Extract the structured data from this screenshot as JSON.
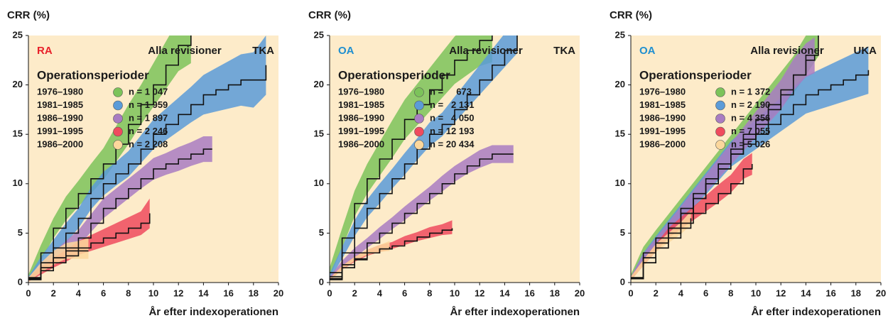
{
  "chart_data": [
    {
      "type": "line",
      "y_label": "CRR (%)",
      "x_label": "År efter indexoperationen",
      "group": "RA",
      "group_color": "#e8202a",
      "heading": "Alla revisioner",
      "implant": "TKA",
      "legend_title": "Operationsperioder",
      "xlim": [
        0,
        20
      ],
      "xticks": [
        0,
        2,
        4,
        6,
        8,
        10,
        12,
        14,
        16,
        18,
        20
      ],
      "ylim": [
        0,
        25
      ],
      "yticks": [
        0,
        5,
        10,
        15,
        20,
        25
      ],
      "series": [
        {
          "name": "1976–1980",
          "n_label": "n = 1 047",
          "color": "#7cc35a",
          "x": [
            0,
            1,
            2,
            3,
            4,
            5,
            6,
            7,
            8,
            9,
            10,
            11,
            12,
            13
          ],
          "values": [
            0.5,
            3,
            5.5,
            7.5,
            9,
            10.5,
            12,
            14,
            16,
            18,
            20,
            22,
            24,
            25
          ],
          "lower": [
            0.2,
            2.2,
            4.5,
            6.3,
            7.7,
            9,
            10.4,
            12.2,
            14,
            16,
            17.8,
            19.6,
            21.4,
            22.2
          ],
          "upper": [
            0.8,
            3.8,
            6.5,
            8.7,
            10.3,
            12,
            13.6,
            15.8,
            18,
            20,
            22.2,
            24.4,
            26.6,
            27.8
          ]
        },
        {
          "name": "1981–1985",
          "n_label": "n = 1 959",
          "color": "#5b9bd8",
          "x": [
            0,
            1,
            2,
            3,
            4,
            5,
            6,
            7,
            8,
            9,
            10,
            11,
            12,
            13,
            14,
            15,
            16,
            17,
            18,
            19
          ],
          "values": [
            0.4,
            2,
            3.5,
            5,
            6.5,
            8.5,
            10,
            11,
            12,
            13.5,
            15,
            16,
            17,
            18,
            19,
            19.5,
            20,
            20.5,
            20.5,
            22
          ],
          "lower": [
            0.2,
            1.4,
            2.7,
            4,
            5.5,
            7.4,
            8.8,
            9.8,
            10.7,
            12.1,
            13.5,
            14.4,
            15.3,
            16.2,
            17,
            17.3,
            17.6,
            17.9,
            17.7,
            19
          ],
          "upper": [
            0.6,
            2.6,
            4.3,
            6,
            7.5,
            9.6,
            11.2,
            12.2,
            13.3,
            14.9,
            16.5,
            17.6,
            18.7,
            19.8,
            21,
            21.7,
            22.4,
            23.1,
            23.3,
            25
          ]
        },
        {
          "name": "1986–1990",
          "n_label": "n = 1 897",
          "color": "#a97cc2",
          "x": [
            0,
            1,
            2,
            3,
            4,
            5,
            6,
            7,
            8,
            9,
            10,
            11,
            12,
            13,
            14,
            14.7
          ],
          "values": [
            0.3,
            1.5,
            2.5,
            3.5,
            4.5,
            6,
            7.5,
            8.5,
            9.5,
            10.5,
            11.5,
            12,
            12.5,
            13,
            13.5,
            13.5
          ],
          "lower": [
            0.1,
            1,
            1.9,
            2.8,
            3.7,
            5.1,
            6.5,
            7.5,
            8.5,
            9.5,
            10.4,
            10.9,
            11.3,
            11.8,
            12.2,
            12.2
          ],
          "upper": [
            0.5,
            2,
            3.1,
            4.2,
            5.3,
            6.9,
            8.5,
            9.5,
            10.5,
            11.5,
            12.6,
            13.1,
            13.7,
            14.2,
            14.8,
            14.8
          ]
        },
        {
          "name": "1991–1995",
          "n_label": "n = 2 246",
          "color": "#ef4b5e",
          "x": [
            0,
            1,
            2,
            3,
            4,
            5,
            6,
            7,
            8,
            9,
            9.7
          ],
          "values": [
            0.3,
            1.2,
            2,
            2.7,
            3.5,
            4,
            4.5,
            5,
            5.5,
            6,
            7
          ],
          "lower": [
            0.1,
            0.8,
            1.5,
            2.1,
            2.8,
            3.2,
            3.6,
            4,
            4.4,
            4.8,
            5.5
          ],
          "upper": [
            0.5,
            1.6,
            2.5,
            3.3,
            4.2,
            4.8,
            5.4,
            6,
            6.6,
            7.2,
            8.5
          ]
        },
        {
          "name": "1986–2000",
          "n_label": "n = 2 208",
          "color": "#fcd79c",
          "x": [
            0,
            1,
            2,
            3,
            4,
            4.8
          ],
          "values": [
            0.3,
            1.5,
            2.5,
            3.2,
            3.2,
            3.2
          ],
          "lower": [
            0.1,
            1,
            1.8,
            2.4,
            2.4,
            2.4
          ],
          "upper": [
            0.5,
            2,
            3.2,
            4,
            4.2,
            4.5
          ]
        }
      ]
    },
    {
      "type": "line",
      "y_label": "CRR (%)",
      "x_label": "År efter indexoperationen",
      "group": "OA",
      "group_color": "#1f8fd0",
      "heading": "Alla revisioner",
      "implant": "TKA",
      "legend_title": "Operationsperioder",
      "xlim": [
        0,
        20
      ],
      "xticks": [
        0,
        2,
        4,
        6,
        8,
        10,
        12,
        14,
        16,
        18,
        20
      ],
      "ylim": [
        0,
        25
      ],
      "yticks": [
        0,
        5,
        10,
        15,
        20,
        25
      ],
      "series": [
        {
          "name": "1976–1980",
          "n_label": "n =     673",
          "color": "#7cc35a",
          "x": [
            0,
            1,
            2,
            3,
            4,
            5,
            6,
            7,
            8,
            9,
            10,
            11,
            12,
            13
          ],
          "values": [
            1,
            4.5,
            8,
            10.5,
            12.5,
            14.5,
            16.5,
            18,
            19.5,
            21,
            22.5,
            23.5,
            24.5,
            25
          ],
          "lower": [
            0.5,
            3.5,
            6.7,
            9,
            10.8,
            12.6,
            14.5,
            15.9,
            17.3,
            18.7,
            20.1,
            21,
            21.9,
            22.3
          ],
          "upper": [
            1.5,
            5.5,
            9.3,
            12,
            14.2,
            16.4,
            18.5,
            20.1,
            21.7,
            23.3,
            24.9,
            26,
            27.1,
            27.7
          ]
        },
        {
          "name": "1981–1985",
          "n_label": "n =   2 131",
          "color": "#5b9bd8",
          "x": [
            0,
            1,
            2,
            3,
            4,
            5,
            6,
            7,
            8,
            9,
            10,
            11,
            12,
            13,
            14,
            15
          ],
          "values": [
            0.6,
            3,
            5.5,
            7.5,
            9,
            10.5,
            12,
            13.5,
            15,
            16,
            17.5,
            19,
            20.5,
            22,
            23.5,
            25
          ],
          "lower": [
            0.3,
            2.4,
            4.7,
            6.6,
            8,
            9.5,
            10.9,
            12.4,
            13.8,
            14.8,
            16.2,
            17.6,
            19,
            20.4,
            21.8,
            23.2
          ],
          "upper": [
            0.9,
            3.6,
            6.3,
            8.4,
            10,
            11.5,
            13.1,
            14.6,
            16.2,
            17.2,
            18.8,
            20.4,
            22,
            23.6,
            25.2,
            26.8
          ]
        },
        {
          "name": "1986–1990",
          "n_label": "n =   4 050",
          "color": "#a97cc2",
          "x": [
            0,
            1,
            2,
            3,
            4,
            5,
            6,
            7,
            8,
            9,
            10,
            11,
            12,
            13,
            14,
            14.7
          ],
          "values": [
            0.4,
            1.8,
            3,
            4,
            5,
            6,
            7,
            8,
            9,
            10,
            11,
            11.8,
            12.5,
            13,
            13,
            13
          ],
          "lower": [
            0.2,
            1.4,
            2.5,
            3.5,
            4.4,
            5.4,
            6.3,
            7.3,
            8.3,
            9.2,
            10.2,
            11,
            11.6,
            12.1,
            12.1,
            12.1
          ],
          "upper": [
            0.6,
            2.2,
            3.5,
            4.5,
            5.6,
            6.6,
            7.7,
            8.7,
            9.7,
            10.8,
            11.8,
            12.6,
            13.4,
            13.9,
            13.9,
            13.9
          ]
        },
        {
          "name": "1991–1995",
          "n_label": "n = 12 193",
          "color": "#ef4b5e",
          "x": [
            0,
            1,
            2,
            3,
            4,
            5,
            6,
            7,
            8,
            9,
            9.8
          ],
          "values": [
            0.3,
            1.5,
            2.3,
            3,
            3.4,
            3.7,
            4.2,
            4.6,
            5,
            5.3,
            5.5
          ],
          "lower": [
            0.2,
            1.3,
            2.1,
            2.7,
            3.1,
            3.4,
            3.8,
            4.2,
            4.5,
            4.8,
            4.9
          ],
          "upper": [
            0.4,
            1.7,
            2.6,
            3.3,
            3.8,
            4.1,
            4.7,
            5.1,
            5.6,
            5.9,
            6.3
          ]
        },
        {
          "name": "1986–2000",
          "n_label": "n = 20 434",
          "color": "#fcd79c",
          "x": [
            0,
            1,
            2,
            3,
            4,
            4.8
          ],
          "values": [
            0.3,
            1.5,
            2.4,
            3,
            3.4,
            3.6
          ],
          "lower": [
            0.2,
            1.3,
            2.2,
            2.8,
            3.1,
            3.2
          ],
          "upper": [
            0.4,
            1.7,
            2.6,
            3.3,
            3.8,
            4.2
          ]
        }
      ]
    },
    {
      "type": "line",
      "y_label": "CRR (%)",
      "x_label": "År efter indexoperationen",
      "group": "OA",
      "group_color": "#1f8fd0",
      "heading": "Alla revisioner",
      "implant": "UKA",
      "legend_title": "Operationsperioder",
      "xlim": [
        0,
        20
      ],
      "xticks": [
        0,
        2,
        4,
        6,
        8,
        10,
        12,
        14,
        16,
        18,
        20
      ],
      "ylim": [
        0,
        25
      ],
      "yticks": [
        0,
        5,
        10,
        15,
        20,
        25
      ],
      "series": [
        {
          "name": "1976–1980",
          "n_label": "n = 1 372",
          "color": "#7cc35a",
          "x": [
            0,
            1,
            2,
            3,
            4,
            5,
            6,
            7,
            8,
            9,
            10,
            11,
            12,
            13,
            14,
            15
          ],
          "values": [
            0.5,
            3,
            4.5,
            6,
            7.5,
            9,
            10.5,
            12,
            13.5,
            15,
            16.5,
            18,
            19.5,
            21,
            23,
            25
          ],
          "lower": [
            0.2,
            2.4,
            3.7,
            5.1,
            6.5,
            7.9,
            9.3,
            10.7,
            12.1,
            13.5,
            14.9,
            16.3,
            17.7,
            19.1,
            21,
            22.9
          ],
          "upper": [
            0.8,
            3.6,
            5.3,
            6.9,
            8.5,
            10.1,
            11.7,
            13.3,
            14.9,
            16.5,
            18.1,
            19.7,
            21.3,
            22.9,
            25,
            27.1
          ]
        },
        {
          "name": "1981–1985",
          "n_label": "n = 2 190",
          "color": "#5b9bd8",
          "x": [
            0,
            1,
            2,
            3,
            4,
            5,
            6,
            7,
            8,
            9,
            10,
            11,
            12,
            13,
            14,
            15,
            16,
            17,
            18,
            19
          ],
          "values": [
            0.4,
            2.5,
            4,
            5.5,
            7,
            8.5,
            10,
            11.5,
            13,
            14,
            15,
            16,
            17,
            18,
            19,
            19.5,
            20,
            20.5,
            21,
            21.5
          ],
          "lower": [
            0.2,
            2,
            3.3,
            4.7,
            6.1,
            7.5,
            8.9,
            10.3,
            11.7,
            12.6,
            13.5,
            14.4,
            15.3,
            16.2,
            17.1,
            17.5,
            17.9,
            18.3,
            18.7,
            19.1
          ],
          "upper": [
            0.6,
            3,
            4.7,
            6.3,
            7.9,
            9.5,
            11.1,
            12.7,
            14.3,
            15.4,
            16.5,
            17.6,
            18.7,
            19.8,
            20.9,
            21.5,
            22.1,
            22.7,
            23.3,
            23.9
          ]
        },
        {
          "name": "1986–1990",
          "n_label": "n = 4 356",
          "color": "#a97cc2",
          "x": [
            0,
            1,
            2,
            3,
            4,
            5,
            6,
            7,
            8,
            9,
            10,
            11,
            12,
            13,
            14,
            14.7
          ],
          "values": [
            0.4,
            2.5,
            4,
            5.5,
            7,
            8.5,
            10,
            11.5,
            13,
            14.5,
            16,
            17.5,
            19,
            21,
            22.5,
            23
          ],
          "lower": [
            0.2,
            2.1,
            3.5,
            4.9,
            6.3,
            7.7,
            9.1,
            10.5,
            11.9,
            13.3,
            14.7,
            16.1,
            17.5,
            19.4,
            20.8,
            21.2
          ],
          "upper": [
            0.6,
            2.9,
            4.5,
            6.1,
            7.7,
            9.3,
            10.9,
            12.5,
            14.1,
            15.7,
            17.3,
            18.9,
            20.5,
            22.6,
            24.2,
            24.8
          ]
        },
        {
          "name": "1991–1995",
          "n_label": "n = 7 055",
          "color": "#ef4b5e",
          "x": [
            0,
            1,
            2,
            3,
            4,
            5,
            6,
            7,
            8,
            9,
            9.7
          ],
          "values": [
            0.4,
            2,
            3.5,
            5,
            6,
            7,
            8,
            9,
            10,
            11.5,
            12
          ],
          "lower": [
            0.2,
            1.7,
            3.1,
            4.5,
            5.4,
            6.3,
            7.2,
            8.1,
            9.1,
            10.5,
            10.9
          ],
          "upper": [
            0.6,
            2.3,
            3.9,
            5.5,
            6.6,
            7.7,
            8.8,
            9.9,
            10.9,
            12.5,
            13.1
          ]
        },
        {
          "name": "1986–2000",
          "n_label": "n = 5 026",
          "color": "#fcd79c",
          "x": [
            0,
            1,
            2,
            3,
            4,
            4.8
          ],
          "values": [
            0.4,
            2,
            3.5,
            4.5,
            5.5,
            6.5
          ],
          "lower": [
            0.2,
            1.7,
            3.1,
            4,
            4.9,
            5.8
          ],
          "upper": [
            0.6,
            2.3,
            3.9,
            5,
            6.1,
            7.2
          ]
        }
      ]
    }
  ]
}
